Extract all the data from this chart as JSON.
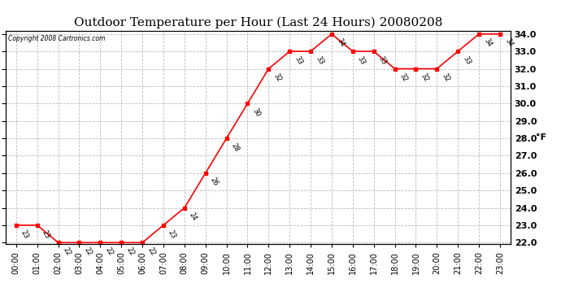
{
  "title": "Outdoor Temperature per Hour (Last 24 Hours) 20080208",
  "copyright": "Copyright 2008 Cartronics.com",
  "ylabel_right": "°F",
  "hours": [
    "00:00",
    "01:00",
    "02:00",
    "03:00",
    "04:00",
    "05:00",
    "06:00",
    "07:00",
    "08:00",
    "09:00",
    "10:00",
    "11:00",
    "12:00",
    "13:00",
    "14:00",
    "15:00",
    "16:00",
    "17:00",
    "18:00",
    "19:00",
    "20:00",
    "21:00",
    "22:00",
    "23:00"
  ],
  "temps": [
    23,
    23,
    22,
    22,
    22,
    22,
    22,
    23,
    24,
    26,
    28,
    30,
    32,
    33,
    33,
    34,
    33,
    33,
    32,
    32,
    32,
    33,
    34,
    34
  ],
  "ylim_min": 22.0,
  "ylim_max": 34.0,
  "yticks": [
    22.0,
    23.0,
    24.0,
    25.0,
    26.0,
    27.0,
    28.0,
    29.0,
    30.0,
    31.0,
    32.0,
    33.0,
    34.0
  ],
  "line_color": "red",
  "marker": "s",
  "marker_size": 3,
  "bg_color": "white",
  "grid_color": "#bbbbbb",
  "title_fontsize": 11,
  "label_fontsize": 7,
  "annot_fontsize": 6,
  "ytick_fontsize": 8
}
